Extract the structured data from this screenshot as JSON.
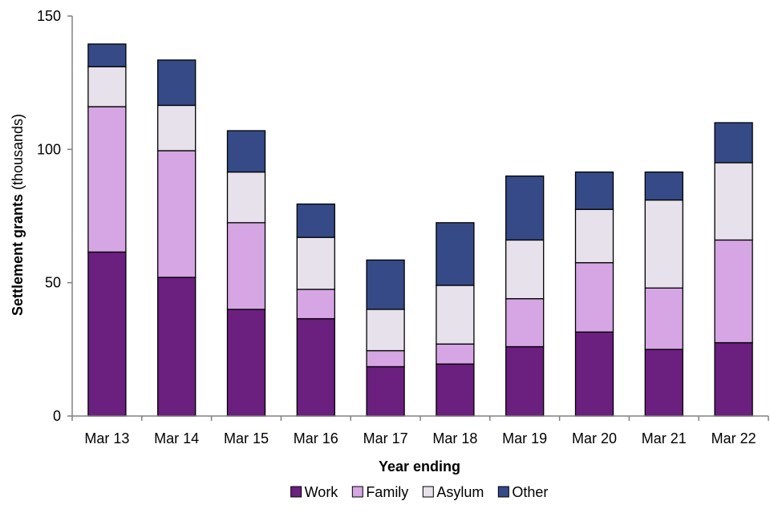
{
  "chart_data": {
    "type": "bar",
    "stacked": true,
    "categories": [
      "Mar 13",
      "Mar 14",
      "Mar 15",
      "Mar 16",
      "Mar 17",
      "Mar 18",
      "Mar 19",
      "Mar 20",
      "Mar 21",
      "Mar 22"
    ],
    "series": [
      {
        "name": "Work",
        "color": "#6B1F7F",
        "values": [
          61.5,
          52,
          40,
          36.5,
          18.5,
          19.5,
          26,
          31.5,
          25,
          27.5
        ]
      },
      {
        "name": "Family",
        "color": "#D5A6E3",
        "values": [
          54.5,
          47.5,
          32.5,
          11,
          6,
          7.5,
          18,
          26,
          23,
          38.5
        ]
      },
      {
        "name": "Asylum",
        "color": "#E6E1EA",
        "values": [
          15,
          17,
          19,
          19.5,
          15.5,
          22,
          22,
          20,
          33,
          29
        ]
      },
      {
        "name": "Other",
        "color": "#354A87",
        "values": [
          8.5,
          17,
          15.5,
          12.5,
          18.5,
          23.5,
          24,
          14,
          10.5,
          15
        ]
      }
    ],
    "xlabel": "Year ending",
    "ylabel_bold": "Settlement grants",
    "ylabel_rest": " (thousands)",
    "ylim": [
      0,
      150
    ],
    "yticks": [
      0,
      50,
      100,
      150
    ],
    "grid": false,
    "legend_position": "bottom"
  }
}
